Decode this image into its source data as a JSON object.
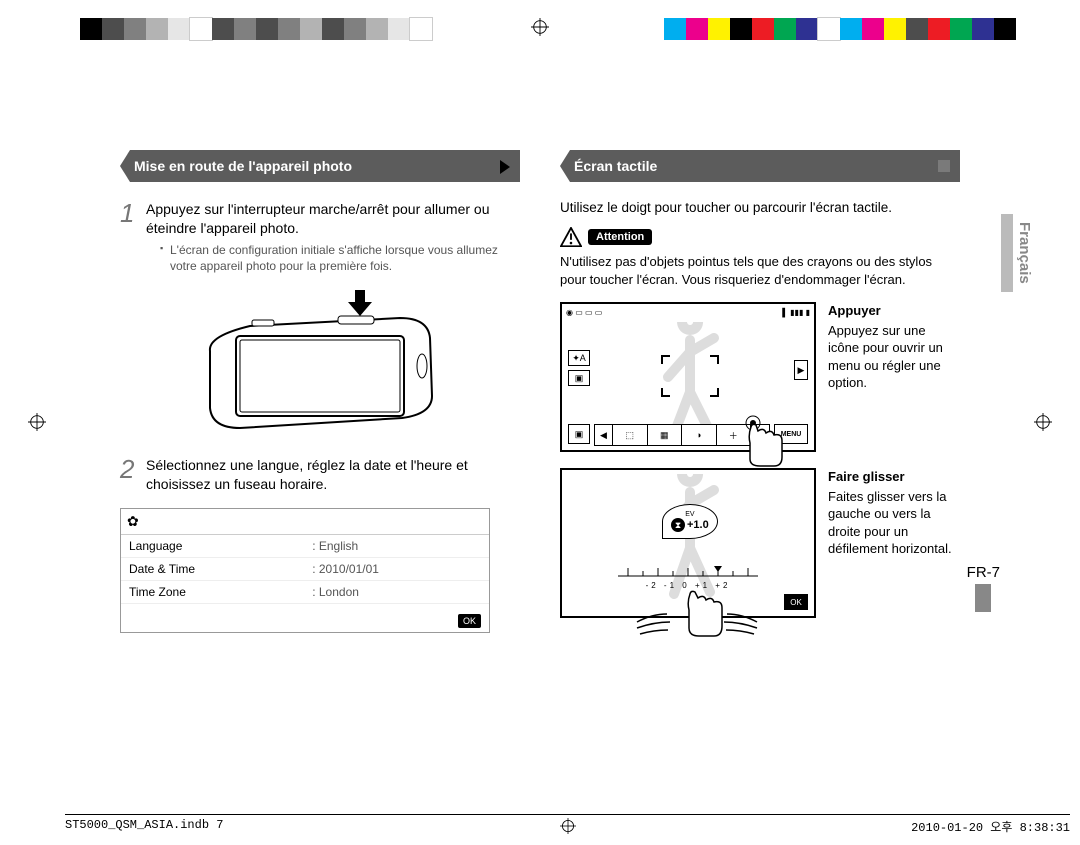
{
  "colorbar_left": [
    "#000000",
    "#4d4d4d",
    "#808080",
    "#b3b3b3",
    "#e6e6e6",
    "#ffffff",
    "#4d4d4d",
    "#808080",
    "#4d4d4d",
    "#808080",
    "#b3b3b3",
    "#4d4d4d",
    "#808080",
    "#b3b3b3",
    "#e6e6e6",
    "#ffffff"
  ],
  "colorbar_right": [
    "#00aeef",
    "#ec008c",
    "#fff200",
    "#000000",
    "#ed1c24",
    "#00a651",
    "#2e3192",
    "#ffffff",
    "#00aeef",
    "#ec008c",
    "#fff200",
    "#4d4d4d",
    "#ed1c24",
    "#00a651",
    "#2e3192",
    "#000000"
  ],
  "left_header": "Mise en route de l'appareil photo",
  "right_header": "Écran tactile",
  "step1": {
    "num": "1",
    "text": "Appuyez sur l'interrupteur marche/arrêt pour allumer ou éteindre l'appareil photo.",
    "sub": "L'écran de configuration initiale s'affiche lorsque vous allumez votre appareil photo pour la première fois."
  },
  "step2": {
    "num": "2",
    "text": "Sélectionnez une langue, réglez la date et l'heure et choisissez un fuseau horaire."
  },
  "settings": {
    "rows": [
      {
        "k": "Language",
        "v": ": English"
      },
      {
        "k": "Date & Time",
        "v": ": 2010/01/01"
      },
      {
        "k": "Time Zone",
        "v": ": London"
      }
    ],
    "ok": "OK"
  },
  "right_intro": "Utilisez le doigt pour toucher ou parcourir l'écran tactile.",
  "attention_label": "Attention",
  "attention_body": "N'utilisez pas d'objets pointus tels que des crayons ou des stylos pour toucher l'écran. Vous risqueriez d'endommager l'écran.",
  "touch1": {
    "title": "Appuyer",
    "body": "Appuyez sur une icône pour ouvrir un menu ou régler une option."
  },
  "touch2": {
    "title": "Faire glisser",
    "body": "Faites glisser vers la gauche ou vers la droite pour un défilement horizontal."
  },
  "ev": {
    "label": "EV",
    "value": "+1.0",
    "scale": "-2  -1  0  +1  +2",
    "ok": "OK"
  },
  "menu_label": "MENU",
  "lang_tab": "Français",
  "page_num": "FR-7",
  "footer_left": "ST5000_QSM_ASIA.indb   7",
  "footer_right": "2010-01-20   오후 8:38:31"
}
